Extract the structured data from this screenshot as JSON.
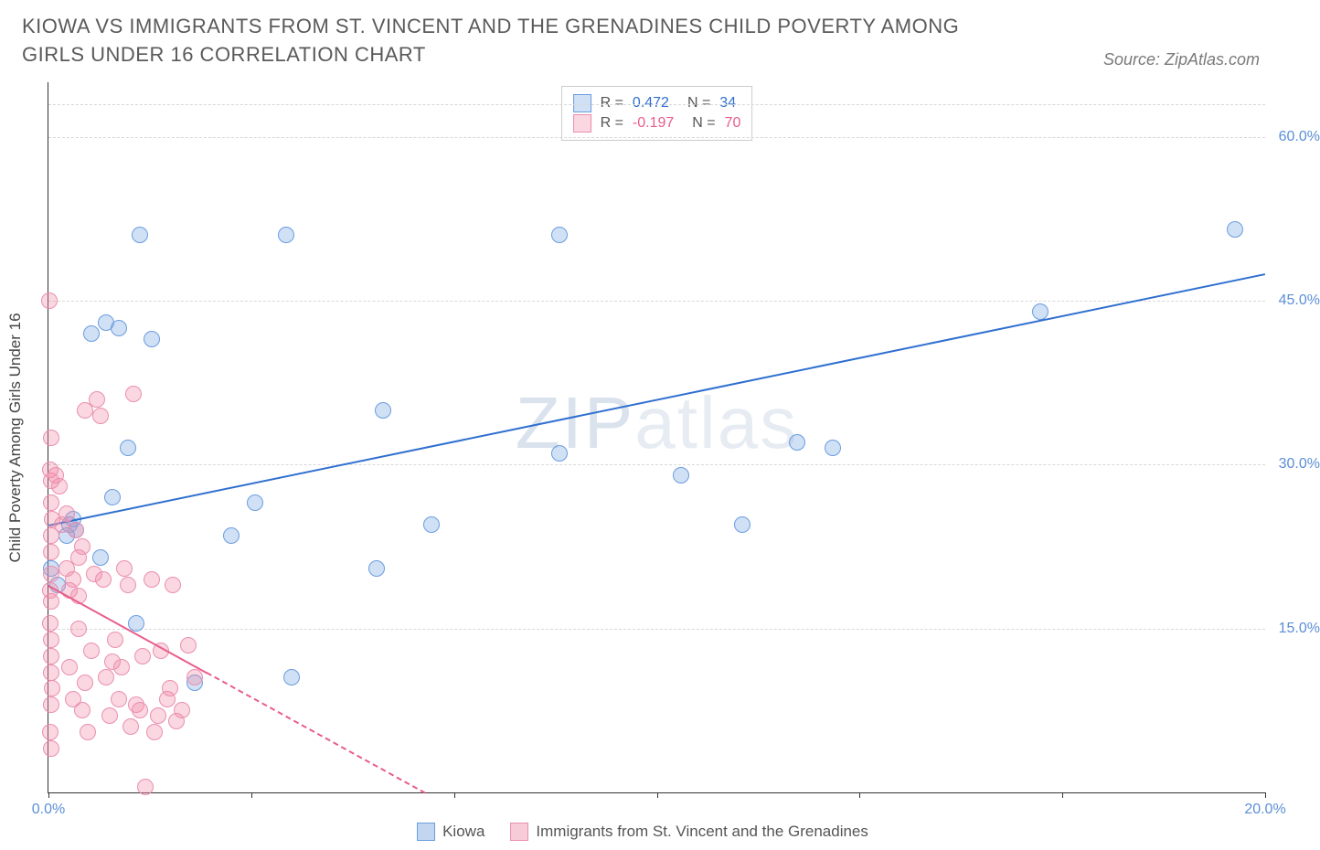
{
  "title": "KIOWA VS IMMIGRANTS FROM ST. VINCENT AND THE GRENADINES CHILD POVERTY AMONG GIRLS UNDER 16 CORRELATION CHART",
  "source": "Source: ZipAtlas.com",
  "watermark": {
    "left": "ZIP",
    "right": "atlas"
  },
  "chart": {
    "type": "scatter",
    "yaxis_title": "Child Poverty Among Girls Under 16",
    "background_color": "#ffffff",
    "grid_color": "#d8d8d8",
    "xlim": [
      0,
      20
    ],
    "ylim": [
      0,
      65
    ],
    "xticks": [
      0,
      3.33,
      6.67,
      10,
      13.33,
      16.67,
      20
    ],
    "xtick_labels": {
      "0": "0.0%",
      "20": "20.0%"
    },
    "yticks": [
      15,
      30,
      45,
      60
    ],
    "ytick_labels": {
      "15": "15.0%",
      "30": "30.0%",
      "45": "45.0%",
      "60": "60.0%"
    },
    "marker_radius": 9,
    "series": [
      {
        "name": "Kiowa",
        "color_fill": "rgba(120,165,225,0.35)",
        "color_stroke": "#6a9de0",
        "trend_color": "#2f6fd0",
        "R": "0.472",
        "N": "34",
        "legend_value_color": "#2f6fd0",
        "trend": {
          "x1": 0,
          "y1": 24.5,
          "x2": 20,
          "y2": 47.5
        },
        "trend_dash_after_x": null,
        "points": [
          [
            0.05,
            20.5
          ],
          [
            0.15,
            19
          ],
          [
            0.3,
            23.5
          ],
          [
            0.35,
            24.5
          ],
          [
            0.4,
            25
          ],
          [
            0.45,
            24
          ],
          [
            0.7,
            42
          ],
          [
            0.85,
            21.5
          ],
          [
            0.95,
            43
          ],
          [
            1.05,
            27
          ],
          [
            1.15,
            42.5
          ],
          [
            1.3,
            31.5
          ],
          [
            1.45,
            15.5
          ],
          [
            1.5,
            51
          ],
          [
            1.7,
            41.5
          ],
          [
            2.4,
            10
          ],
          [
            3.0,
            23.5
          ],
          [
            3.4,
            26.5
          ],
          [
            3.9,
            51
          ],
          [
            4.0,
            10.5
          ],
          [
            5.4,
            20.5
          ],
          [
            5.5,
            35
          ],
          [
            6.3,
            24.5
          ],
          [
            8.4,
            31
          ],
          [
            8.4,
            51
          ],
          [
            10.4,
            29
          ],
          [
            11.4,
            24.5
          ],
          [
            12.3,
            32
          ],
          [
            12.9,
            31.5
          ],
          [
            16.3,
            44
          ],
          [
            19.5,
            51.5
          ]
        ]
      },
      {
        "name": "Immigrants from St. Vincent and the Grenadines",
        "color_fill": "rgba(240,140,170,0.35)",
        "color_stroke": "#ea8fb0",
        "trend_color": "#e85d8a",
        "R": "-0.197",
        "N": "70",
        "legend_value_color": "#e85d8a",
        "trend": {
          "x1": 0,
          "y1": 19,
          "x2": 6.2,
          "y2": 0
        },
        "trend_dash_after_x": 2.6,
        "points": [
          [
            0.02,
            45
          ],
          [
            0.04,
            32.5
          ],
          [
            0.03,
            29.5
          ],
          [
            0.05,
            28.5
          ],
          [
            0.05,
            26.5
          ],
          [
            0.06,
            25
          ],
          [
            0.05,
            23.5
          ],
          [
            0.05,
            22
          ],
          [
            0.04,
            20
          ],
          [
            0.03,
            18.5
          ],
          [
            0.05,
            17.5
          ],
          [
            0.03,
            15.5
          ],
          [
            0.05,
            14
          ],
          [
            0.04,
            12.5
          ],
          [
            0.05,
            11
          ],
          [
            0.06,
            9.5
          ],
          [
            0.04,
            8
          ],
          [
            0.03,
            5.5
          ],
          [
            0.05,
            4
          ],
          [
            0.12,
            29
          ],
          [
            0.18,
            28
          ],
          [
            0.22,
            24.5
          ],
          [
            0.3,
            25.5
          ],
          [
            0.3,
            20.5
          ],
          [
            0.35,
            18.5
          ],
          [
            0.4,
            19.5
          ],
          [
            0.45,
            24
          ],
          [
            0.5,
            21.5
          ],
          [
            0.5,
            18
          ],
          [
            0.55,
            22.5
          ],
          [
            0.35,
            11.5
          ],
          [
            0.4,
            8.5
          ],
          [
            0.5,
            15
          ],
          [
            0.55,
            7.5
          ],
          [
            0.6,
            10
          ],
          [
            0.6,
            35
          ],
          [
            0.65,
            5.5
          ],
          [
            0.7,
            13
          ],
          [
            0.75,
            20
          ],
          [
            0.8,
            36
          ],
          [
            0.85,
            34.5
          ],
          [
            0.9,
            19.5
          ],
          [
            0.95,
            10.5
          ],
          [
            1.0,
            7
          ],
          [
            1.05,
            12
          ],
          [
            1.1,
            14
          ],
          [
            1.15,
            8.5
          ],
          [
            1.2,
            11.5
          ],
          [
            1.25,
            20.5
          ],
          [
            1.3,
            19
          ],
          [
            1.35,
            6
          ],
          [
            1.4,
            36.5
          ],
          [
            1.45,
            8
          ],
          [
            1.5,
            7.5
          ],
          [
            1.55,
            12.5
          ],
          [
            1.6,
            0.5
          ],
          [
            1.7,
            19.5
          ],
          [
            1.75,
            5.5
          ],
          [
            1.8,
            7
          ],
          [
            1.85,
            13
          ],
          [
            1.95,
            8.5
          ],
          [
            2.0,
            9.5
          ],
          [
            2.05,
            19
          ],
          [
            2.1,
            6.5
          ],
          [
            2.2,
            7.5
          ],
          [
            2.3,
            13.5
          ],
          [
            2.4,
            10.5
          ]
        ]
      }
    ]
  },
  "legend_top_labels": {
    "R": "R =",
    "N": "N ="
  },
  "legend_bottom": [
    {
      "label": "Kiowa",
      "fill": "rgba(120,165,225,0.45)",
      "stroke": "#6a9de0"
    },
    {
      "label": "Immigrants from St. Vincent and the Grenadines",
      "fill": "rgba(240,140,170,0.45)",
      "stroke": "#ea8fb0"
    }
  ]
}
